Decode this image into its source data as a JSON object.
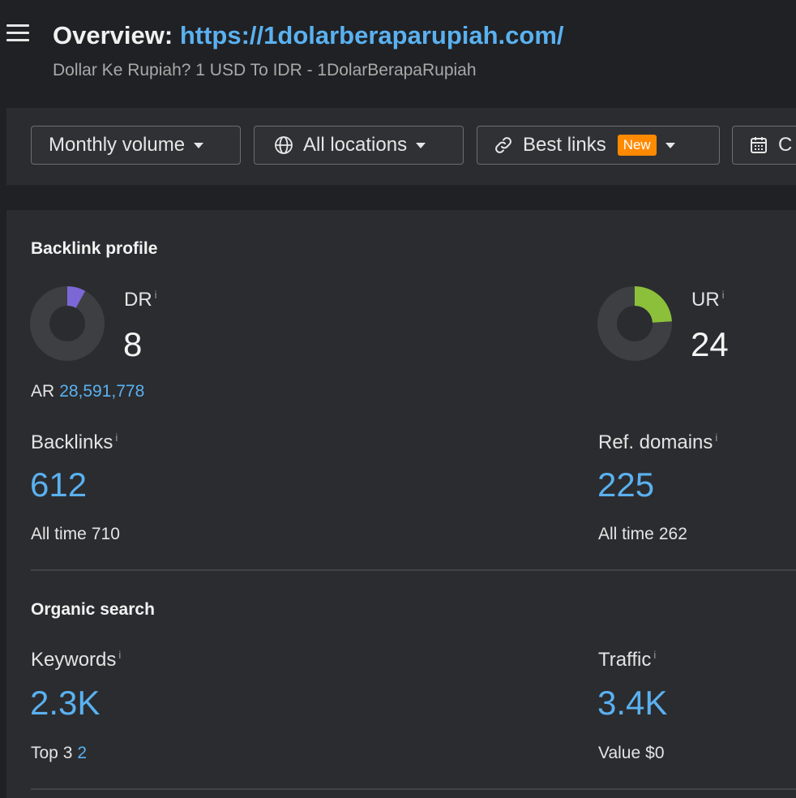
{
  "header": {
    "title_label": "Overview:",
    "title_url": "https://1dolarberaparupiah.com/",
    "subtitle": "Dollar Ke Rupiah? 1 USD To IDR - 1DolarBerapaRupiah"
  },
  "toolbar": {
    "volume": "Monthly volume",
    "locations": "All locations",
    "links": "Best links",
    "links_badge": "New",
    "compare_partial": "C"
  },
  "backlink_profile": {
    "title": "Backlink profile",
    "dr": {
      "label": "DR",
      "info": "i",
      "value": "8"
    },
    "ur": {
      "label": "UR",
      "info": "i",
      "value": "24"
    },
    "ar": {
      "label": "AR",
      "value": "28,591,778"
    },
    "backlinks": {
      "label": "Backlinks",
      "info": "i",
      "value": "612",
      "sub_label": "All time",
      "sub_value": "710"
    },
    "ref_domains": {
      "label": "Ref. domains",
      "info": "i",
      "value": "225",
      "sub_label": "All time",
      "sub_value": "262"
    }
  },
  "organic_search": {
    "title": "Organic search",
    "keywords": {
      "label": "Keywords",
      "info": "i",
      "value": "2.3K",
      "sub_label": "Top 3",
      "sub_value": "2"
    },
    "traffic": {
      "label": "Traffic",
      "info": "i",
      "value": "3.4K",
      "sub_label": "Value",
      "sub_value": "$0"
    }
  },
  "colors": {
    "background": "#202124",
    "panel": "#2b2c2f",
    "link_blue": "#5ab1f0",
    "badge_orange": "#ff8a00",
    "dr_purple": "#7b68d6",
    "ur_green": "#8cc03b",
    "donut_track": "#3e3f42"
  },
  "gauges": {
    "dr_fraction": 0.08,
    "ur_fraction": 0.24
  }
}
